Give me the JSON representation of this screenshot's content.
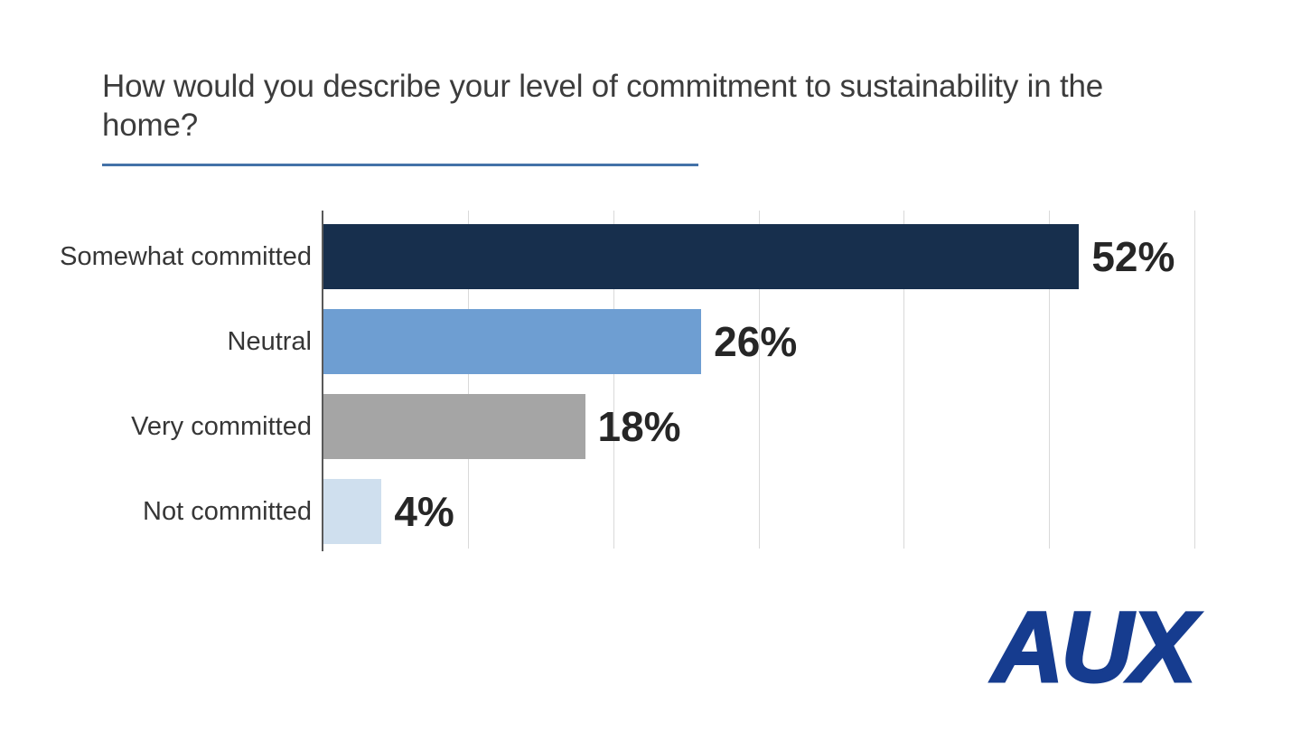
{
  "header": {
    "title": "How would you describe your level of commitment to sustainability in the home?",
    "underline_color": "#4472a8"
  },
  "chart_data": {
    "type": "bar",
    "orientation": "horizontal",
    "title": "How would you describe your level of commitment to sustainability in the home?",
    "categories": [
      "Somewhat committed",
      "Neutral",
      "Very committed",
      "Not committed"
    ],
    "values": [
      52,
      26,
      18,
      4
    ],
    "value_labels": [
      "52%",
      "26%",
      "18%",
      "4%"
    ],
    "bar_colors": [
      "#172f4d",
      "#6e9ed2",
      "#a5a5a5",
      "#cfdfee"
    ],
    "xlabel": "",
    "ylabel": "",
    "xlim": [
      0,
      60
    ],
    "gridline_step": 10,
    "grid": true,
    "legend": "none",
    "axis_color": "#595959",
    "gridline_color": "#d9d9d9"
  },
  "branding": {
    "logo_text": "AUX",
    "logo_color": "#163c8f"
  }
}
